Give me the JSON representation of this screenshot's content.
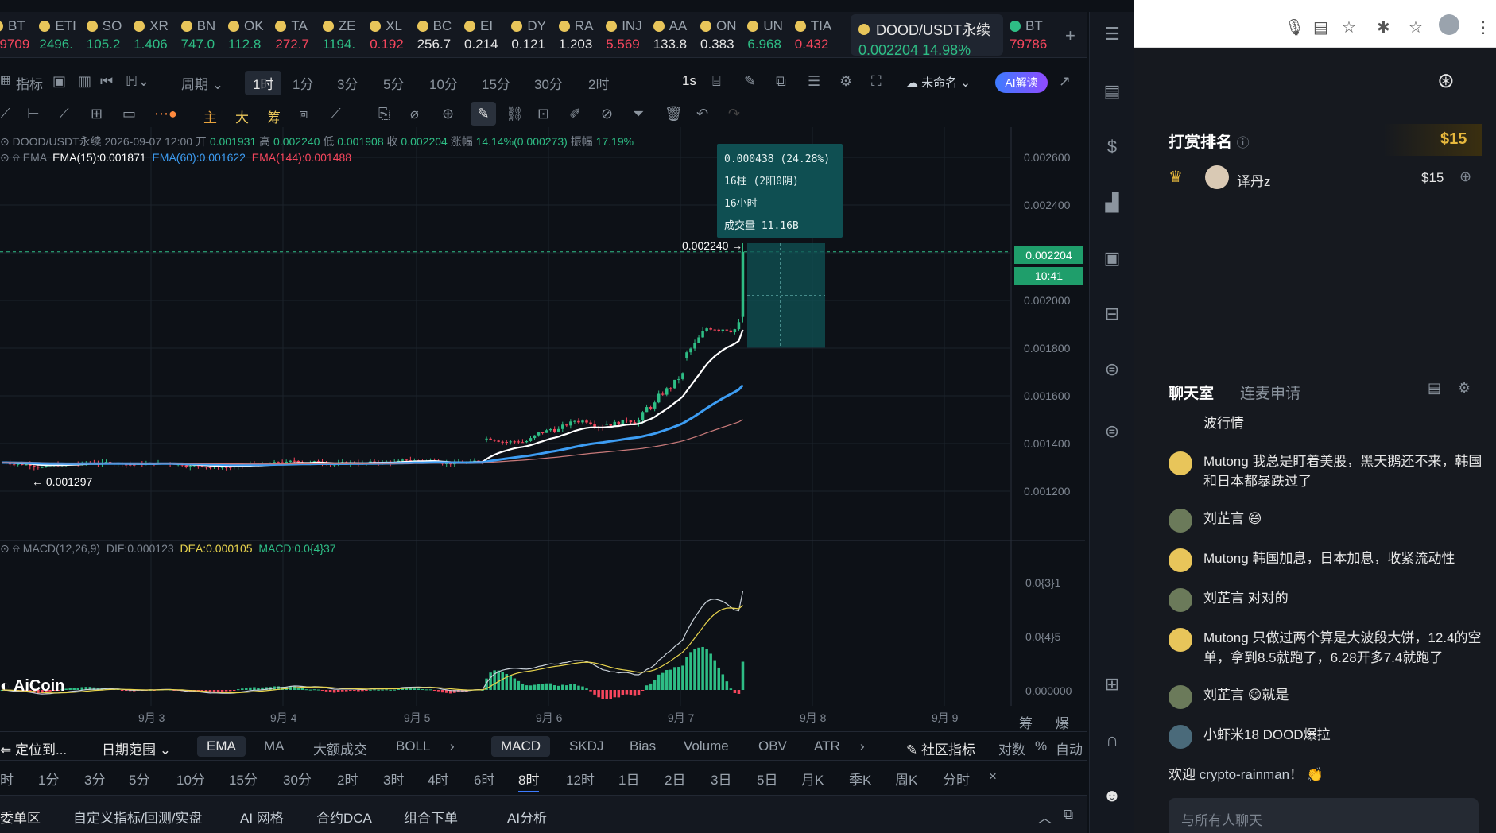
{
  "ticker": [
    {
      "sym": "BT",
      "px": "79709",
      "cls": "dn"
    },
    {
      "sym": "ETI",
      "px": "2496.",
      "cls": "up"
    },
    {
      "sym": "SO",
      "px": "105.2",
      "cls": "up"
    },
    {
      "sym": "XR",
      "px": "1.406",
      "cls": "up"
    },
    {
      "sym": "BN",
      "px": "747.0",
      "cls": "up"
    },
    {
      "sym": "OK",
      "px": "112.8",
      "cls": "up"
    },
    {
      "sym": "TA",
      "px": "272.7",
      "cls": "dn"
    },
    {
      "sym": "ZE",
      "px": "1194.",
      "cls": "up"
    },
    {
      "sym": "XL",
      "px": "0.192",
      "cls": "dn"
    },
    {
      "sym": "BC",
      "px": "256.7",
      "cls": "wt"
    },
    {
      "sym": "EI",
      "px": "0.214",
      "cls": "wt"
    },
    {
      "sym": "DY",
      "px": "0.121",
      "cls": "wt"
    },
    {
      "sym": "RA",
      "px": "1.203",
      "cls": "wt"
    },
    {
      "sym": "INJ",
      "px": "5.569",
      "cls": "dn"
    },
    {
      "sym": "AA",
      "px": "133.8",
      "cls": "wt"
    },
    {
      "sym": "ON",
      "px": "0.383",
      "cls": "wt"
    },
    {
      "sym": "UN",
      "px": "6.968",
      "cls": "up"
    },
    {
      "sym": "TIA",
      "px": "0.432",
      "cls": "dn"
    }
  ],
  "ticker_active": {
    "sym": "DOOD/USDT永续",
    "px": "0.002204",
    "chg": "14.98%"
  },
  "ticker_last": {
    "sym": "BT",
    "px": "79786"
  },
  "toolbar1": {
    "indicator": "指标",
    "period": "周期",
    "intervals": [
      "1时",
      "1分",
      "3分",
      "5分",
      "10分",
      "15分",
      "30分",
      "2时"
    ],
    "selected_interval": "1时",
    "interval_1s": "1s",
    "unnamed": "未命名",
    "ai_label": "AI解读"
  },
  "toolbar2": {
    "zhu": "主",
    "da": "大",
    "chou": "筹"
  },
  "chart_info": {
    "symbol": "DOOD/USDT永续",
    "time": "2026-09-07 12:00",
    "open_l": "开",
    "open": "0.001931",
    "high_l": "高",
    "high": "0.002240",
    "low_l": "低",
    "low": "0.001908",
    "close_l": "收",
    "close": "0.002204",
    "chg_l": "涨幅",
    "chg": "14.14%(0.000273)",
    "amp_l": "振幅",
    "amp": "17.19%",
    "ema_label": "EMA",
    "ema15": "EMA(15):0.001871",
    "ema60": "EMA(60):0.001622",
    "ema144": "EMA(144):0.001488",
    "macd_label": "MACD(12,26,9)",
    "dif": "DIF:0.000123",
    "dea": "DEA:0.000105",
    "macd": "MACD:0.0{4}37"
  },
  "price_axis": [
    "0.002600",
    "0.002400",
    "0.002204",
    "0.002000",
    "0.001800",
    "0.001600",
    "0.001400",
    "0.001200"
  ],
  "macd_axis": [
    "0.0{3}1",
    "0.0{4}5",
    "0.000000"
  ],
  "time_axis": [
    "9月 3",
    "9月 4",
    "9月 5",
    "9月 6",
    "9月 7",
    "9月 8",
    "9月 9"
  ],
  "price_tag": "0.002204",
  "countdown": "10:41",
  "high_marker": "0.002240",
  "low_marker": "0.001297",
  "tooltip": [
    "0.000438 (24.28%)",
    "16柱 (2阳0阴)",
    "16小时",
    "成交量 11.16B"
  ],
  "watermark": "AiCoin",
  "axis_right_icons": [
    "筹",
    "爆"
  ],
  "indicator_bar": {
    "locate": "定位到...",
    "date_range": "日期范围",
    "main": [
      "EMA",
      "MA",
      "大额成交",
      "BOLL"
    ],
    "sub": [
      "MACD",
      "SKDJ",
      "Bias",
      "Volume",
      "OBV",
      "ATR"
    ],
    "community": "社区指标",
    "log": "对数",
    "pct": "%",
    "auto": "自动"
  },
  "period_bar": [
    "时",
    "1分",
    "3分",
    "5分",
    "10分",
    "15分",
    "30分",
    "2时",
    "3时",
    "4时",
    "6时",
    "8时",
    "12时",
    "1日",
    "2日",
    "3日",
    "5日",
    "月K",
    "季K",
    "周K",
    "分时"
  ],
  "period_selected": "8时",
  "bottom_tabs": [
    "委单区",
    "自定义指标/回测/实盘",
    "AI 网格",
    "合约DCA",
    "组合下单",
    "AI分析"
  ],
  "reward": {
    "title": "打赏排名",
    "total": "$15",
    "user": "译丹z",
    "amount": "$15"
  },
  "chat": {
    "tab_chat": "聊天室",
    "tab_mic": "连麦申请",
    "partial": "波行情",
    "messages": [
      {
        "user": "Mutong",
        "text": "我总是盯着美股，黑天鹅还不来，韩国和日本都暴跌过了"
      },
      {
        "user": "刘芷言",
        "text": "😄"
      },
      {
        "user": "Mutong",
        "text": "韩国加息，日本加息，收紧流动性"
      },
      {
        "user": "刘芷言",
        "text": "对对的"
      },
      {
        "user": "Mutong",
        "text": "只做过两个算是大波段大饼，12.4的空单，拿到8.5就跑了，6.28开多7.4就跑了"
      },
      {
        "user": "刘芷言",
        "text": "😄就是"
      },
      {
        "user": "小虾米18",
        "text": "DOOD爆拉"
      }
    ],
    "welcome": "欢迎",
    "welcome_user": "crypto-rainman",
    "welcome_tail": "！ 👏",
    "input_placeholder": "与所有人聊天"
  },
  "colors": {
    "up": "#2ebd85",
    "down": "#f6465d",
    "ema15": "#ffffff",
    "ema60": "#3d9df3",
    "ema144": "#c97a7a",
    "dea": "#e8d44d",
    "bg": "#0d1117"
  },
  "chart_data": {
    "type": "candlestick",
    "symbol": "DOOD/USDT永续",
    "interval": "1时",
    "ylim": [
      0.0012,
      0.0026
    ],
    "last_price": 0.002204,
    "ohlc_last": {
      "open": 0.001931,
      "high": 0.00224,
      "low": 0.001908,
      "close": 0.002204
    },
    "x_ticks": [
      "9月 3",
      "9月 4",
      "9月 5",
      "9月 6",
      "9月 7",
      "9月 8",
      "9月 9"
    ]
  }
}
